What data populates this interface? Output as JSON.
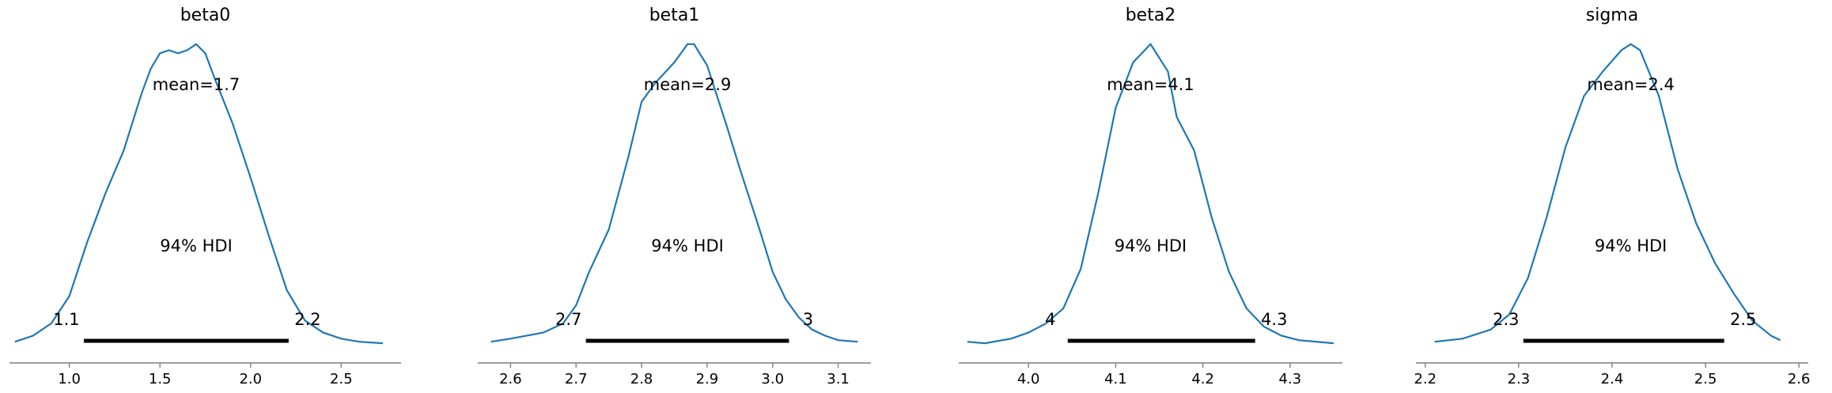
{
  "chart_data": [
    {
      "type": "area",
      "title": "beta0",
      "mean_label": "mean=1.7",
      "hdi_label": "94% HDI",
      "hdi": {
        "low": 1.08,
        "high": 2.21,
        "low_label": "1.1",
        "high_label": "2.2"
      },
      "xlim": [
        0.67,
        2.83
      ],
      "xticks": [
        1.0,
        1.5,
        2.0,
        2.5
      ],
      "xtick_labels": [
        "1.0",
        "1.5",
        "2.0",
        "2.5"
      ],
      "x": [
        0.7,
        0.8,
        0.9,
        1.0,
        1.1,
        1.2,
        1.3,
        1.4,
        1.45,
        1.5,
        1.55,
        1.6,
        1.65,
        1.7,
        1.75,
        1.8,
        1.9,
        2.0,
        2.1,
        2.2,
        2.3,
        2.4,
        2.5,
        2.6,
        2.73
      ],
      "density": [
        0.01,
        0.03,
        0.07,
        0.16,
        0.34,
        0.5,
        0.64,
        0.83,
        0.91,
        0.96,
        0.97,
        0.96,
        0.97,
        0.99,
        0.96,
        0.88,
        0.73,
        0.55,
        0.36,
        0.18,
        0.08,
        0.04,
        0.02,
        0.01,
        0.005
      ]
    },
    {
      "type": "area",
      "title": "beta1",
      "mean_label": "mean=2.9",
      "hdi_label": "94% HDI",
      "hdi": {
        "low": 2.715,
        "high": 3.025,
        "low_label": "2.7",
        "high_label": "3"
      },
      "xlim": [
        2.55,
        3.15
      ],
      "xticks": [
        2.6,
        2.7,
        2.8,
        2.9,
        3.0,
        3.1
      ],
      "xtick_labels": [
        "2.6",
        "2.7",
        "2.8",
        "2.9",
        "3.0",
        "3.1"
      ],
      "x": [
        2.57,
        2.6,
        2.65,
        2.68,
        2.7,
        2.72,
        2.75,
        2.78,
        2.8,
        2.82,
        2.85,
        2.87,
        2.88,
        2.9,
        2.93,
        2.95,
        2.98,
        3.0,
        3.02,
        3.04,
        3.06,
        3.08,
        3.1,
        3.13
      ],
      "density": [
        0.01,
        0.02,
        0.04,
        0.07,
        0.13,
        0.24,
        0.38,
        0.62,
        0.8,
        0.86,
        0.93,
        0.99,
        0.99,
        0.92,
        0.72,
        0.58,
        0.38,
        0.24,
        0.15,
        0.09,
        0.05,
        0.03,
        0.015,
        0.01
      ]
    },
    {
      "type": "area",
      "title": "beta2",
      "mean_label": "mean=4.1",
      "hdi_label": "94% HDI",
      "hdi": {
        "low": 4.045,
        "high": 4.26,
        "low_label": "4",
        "high_label": "4.3"
      },
      "xlim": [
        3.92,
        4.36
      ],
      "xticks": [
        4.0,
        4.1,
        4.2,
        4.3
      ],
      "xtick_labels": [
        "4.0",
        "4.1",
        "4.2",
        "4.3"
      ],
      "x": [
        3.93,
        3.95,
        3.98,
        4.0,
        4.02,
        4.04,
        4.06,
        4.08,
        4.1,
        4.12,
        4.14,
        4.16,
        4.17,
        4.19,
        4.21,
        4.23,
        4.25,
        4.27,
        4.29,
        4.31,
        4.35
      ],
      "density": [
        0.01,
        0.005,
        0.02,
        0.04,
        0.07,
        0.12,
        0.25,
        0.5,
        0.78,
        0.93,
        0.99,
        0.9,
        0.75,
        0.64,
        0.42,
        0.24,
        0.12,
        0.06,
        0.03,
        0.015,
        0.005
      ]
    },
    {
      "type": "area",
      "title": "sigma",
      "mean_label": "mean=2.4",
      "hdi_label": "94% HDI",
      "hdi": {
        "low": 2.305,
        "high": 2.52,
        "low_label": "2.3",
        "high_label": "2.5"
      },
      "xlim": [
        2.19,
        2.61
      ],
      "xticks": [
        2.2,
        2.3,
        2.4,
        2.5,
        2.6
      ],
      "xtick_labels": [
        "2.2",
        "2.3",
        "2.4",
        "2.5",
        "2.6"
      ],
      "x": [
        2.21,
        2.24,
        2.27,
        2.29,
        2.31,
        2.33,
        2.35,
        2.37,
        2.39,
        2.41,
        2.42,
        2.43,
        2.45,
        2.47,
        2.49,
        2.51,
        2.53,
        2.55,
        2.57,
        2.58
      ],
      "density": [
        0.01,
        0.02,
        0.05,
        0.1,
        0.22,
        0.42,
        0.65,
        0.82,
        0.9,
        0.97,
        0.99,
        0.97,
        0.82,
        0.58,
        0.4,
        0.27,
        0.17,
        0.08,
        0.03,
        0.015
      ]
    }
  ]
}
